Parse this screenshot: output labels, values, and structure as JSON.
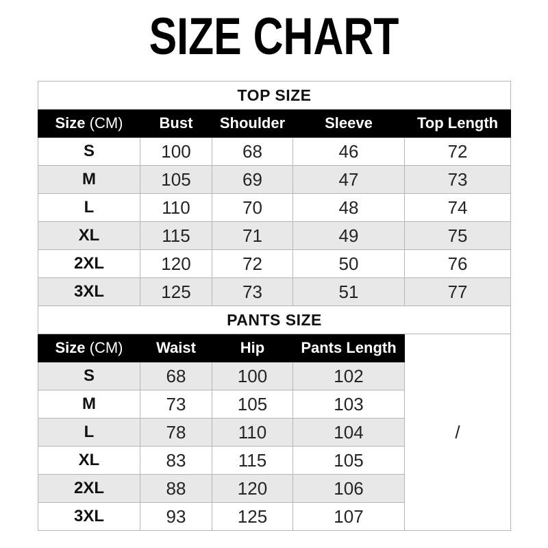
{
  "page": {
    "title": "SIZE CHART"
  },
  "colors": {
    "header_bg": "#000000",
    "header_text": "#ffffff",
    "shaded_row_bg": "#e8e8e8",
    "border": "#b5b5b5",
    "text": "#1e1e1e"
  },
  "chart_data": [
    {
      "type": "table",
      "title": "TOP SIZE",
      "size_column": {
        "label": "Size",
        "unit": "(CM)"
      },
      "columns": [
        "Bust",
        "Shoulder",
        "Sleeve",
        "Top Length"
      ],
      "rows": [
        {
          "size": "S",
          "values": [
            "100",
            "68",
            "46",
            "72"
          ],
          "shaded": false
        },
        {
          "size": "M",
          "values": [
            "105",
            "69",
            "47",
            "73"
          ],
          "shaded": true
        },
        {
          "size": "L",
          "values": [
            "110",
            "70",
            "48",
            "74"
          ],
          "shaded": false
        },
        {
          "size": "XL",
          "values": [
            "115",
            "71",
            "49",
            "75"
          ],
          "shaded": true
        },
        {
          "size": "2XL",
          "values": [
            "120",
            "72",
            "50",
            "76"
          ],
          "shaded": false
        },
        {
          "size": "3XL",
          "values": [
            "125",
            "73",
            "51",
            "77"
          ],
          "shaded": true
        }
      ]
    },
    {
      "type": "table",
      "title": "PANTS SIZE",
      "size_column": {
        "label": "Size",
        "unit": "(CM)"
      },
      "columns": [
        "Waist",
        "Hip",
        "Pants Length"
      ],
      "merged_last_column_value": "/",
      "rows": [
        {
          "size": "S",
          "values": [
            "68",
            "100",
            "102"
          ],
          "shaded": true
        },
        {
          "size": "M",
          "values": [
            "73",
            "105",
            "103"
          ],
          "shaded": false
        },
        {
          "size": "L",
          "values": [
            "78",
            "110",
            "104"
          ],
          "shaded": true
        },
        {
          "size": "XL",
          "values": [
            "83",
            "115",
            "105"
          ],
          "shaded": false
        },
        {
          "size": "2XL",
          "values": [
            "88",
            "120",
            "106"
          ],
          "shaded": true
        },
        {
          "size": "3XL",
          "values": [
            "93",
            "125",
            "107"
          ],
          "shaded": false
        }
      ]
    }
  ]
}
